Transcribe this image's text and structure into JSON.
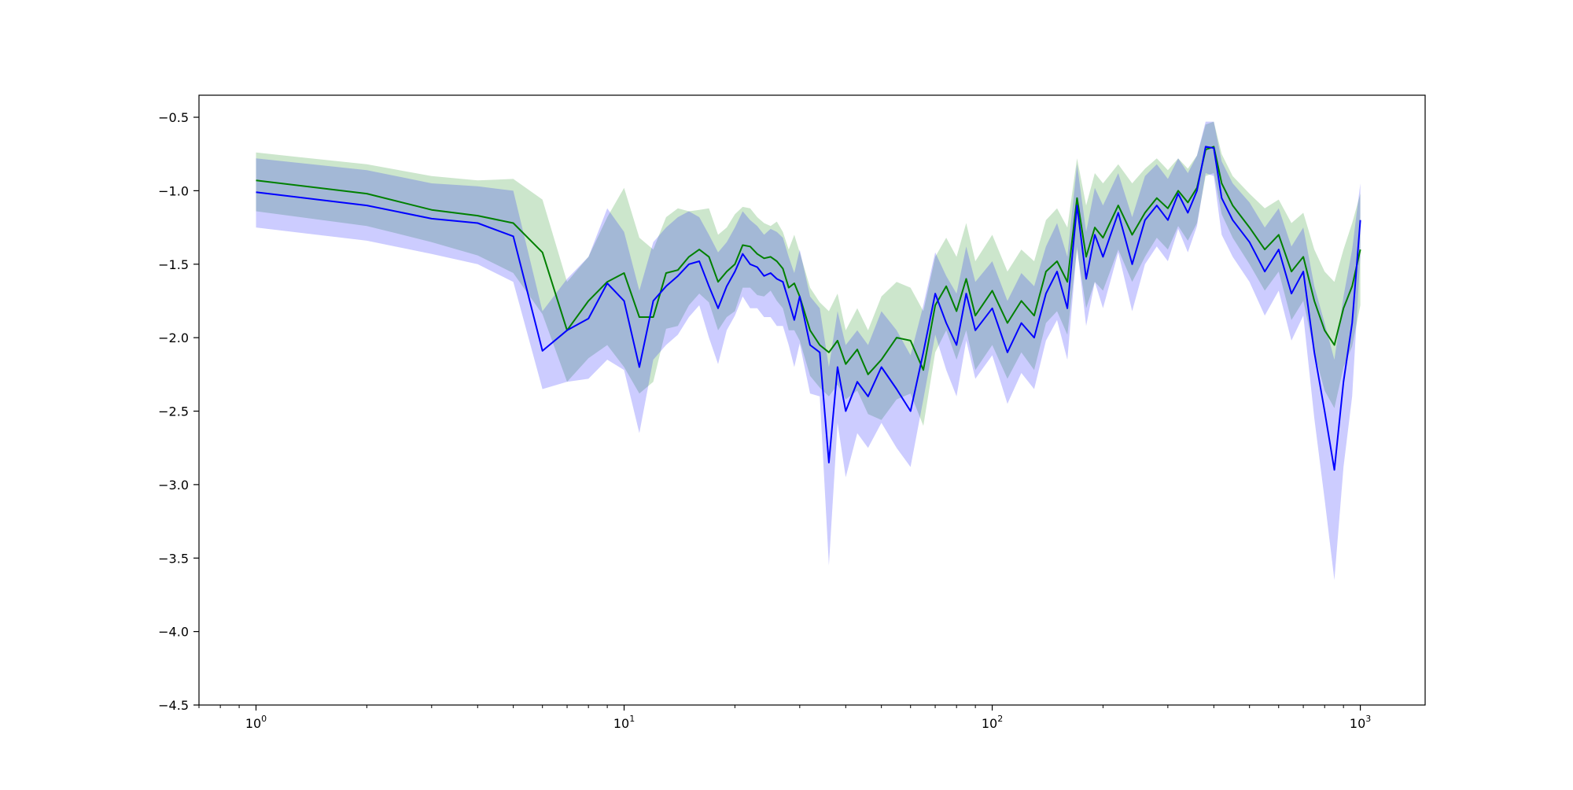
{
  "chart_data": {
    "type": "line",
    "title": "",
    "xlabel": "",
    "ylabel": "",
    "xscale": "log",
    "xlim": [
      0.7,
      1500
    ],
    "ylim": [
      -4.5,
      -0.35
    ],
    "grid": false,
    "legend": "none",
    "x_ticks": [
      {
        "base": "10",
        "exp": "0",
        "value": 1
      },
      {
        "base": "10",
        "exp": "1",
        "value": 10
      },
      {
        "base": "10",
        "exp": "2",
        "value": 100
      },
      {
        "base": "10",
        "exp": "3",
        "value": 1000
      }
    ],
    "y_ticks": [
      {
        "label": "−0.5",
        "value": -0.5
      },
      {
        "label": "−1.0",
        "value": -1.0
      },
      {
        "label": "−1.5",
        "value": -1.5
      },
      {
        "label": "−2.0",
        "value": -2.0
      },
      {
        "label": "−2.5",
        "value": -2.5
      },
      {
        "label": "−3.0",
        "value": -3.0
      },
      {
        "label": "−3.5",
        "value": -3.5
      },
      {
        "label": "−4.0",
        "value": -4.0
      },
      {
        "label": "−4.5",
        "value": -4.5
      }
    ],
    "series": [
      {
        "color": "#008000",
        "band_color": "#008000",
        "band_opacity": 0.2,
        "x": [
          1,
          2,
          3,
          4,
          5,
          6,
          7,
          8,
          9,
          10,
          11,
          12,
          13,
          14,
          15,
          16,
          17,
          18,
          19,
          20,
          21,
          22,
          23,
          24,
          25,
          26,
          27,
          28,
          29,
          30,
          32,
          34,
          36,
          38,
          40,
          43,
          46,
          50,
          55,
          60,
          65,
          70,
          75,
          80,
          85,
          90,
          100,
          110,
          120,
          130,
          140,
          150,
          160,
          170,
          180,
          190,
          200,
          220,
          240,
          260,
          280,
          300,
          320,
          340,
          360,
          380,
          400,
          420,
          450,
          500,
          550,
          600,
          650,
          700,
          750,
          800,
          850,
          900,
          950,
          1000
        ],
        "y": [
          -0.93,
          -1.02,
          -1.13,
          -1.17,
          -1.22,
          -1.42,
          -1.95,
          -1.75,
          -1.62,
          -1.56,
          -1.86,
          -1.86,
          -1.56,
          -1.54,
          -1.45,
          -1.4,
          -1.45,
          -1.62,
          -1.55,
          -1.5,
          -1.37,
          -1.38,
          -1.43,
          -1.46,
          -1.45,
          -1.48,
          -1.53,
          -1.66,
          -1.63,
          -1.72,
          -1.95,
          -2.05,
          -2.1,
          -2.02,
          -2.18,
          -2.08,
          -2.25,
          -2.15,
          -2.0,
          -2.02,
          -2.22,
          -1.78,
          -1.65,
          -1.82,
          -1.6,
          -1.85,
          -1.68,
          -1.9,
          -1.75,
          -1.85,
          -1.55,
          -1.48,
          -1.62,
          -1.05,
          -1.45,
          -1.25,
          -1.32,
          -1.1,
          -1.3,
          -1.15,
          -1.05,
          -1.12,
          -1.0,
          -1.08,
          -0.98,
          -0.72,
          -0.7,
          -0.95,
          -1.1,
          -1.25,
          -1.4,
          -1.3,
          -1.55,
          -1.45,
          -1.75,
          -1.95,
          -2.05,
          -1.8,
          -1.65,
          -1.4
        ],
        "upper": [
          -0.74,
          -0.82,
          -0.9,
          -0.93,
          -0.92,
          -1.06,
          -1.62,
          -1.45,
          -1.18,
          -0.98,
          -1.32,
          -1.4,
          -1.18,
          -1.12,
          -1.14,
          -1.13,
          -1.12,
          -1.3,
          -1.25,
          -1.16,
          -1.11,
          -1.12,
          -1.18,
          -1.22,
          -1.24,
          -1.21,
          -1.28,
          -1.4,
          -1.3,
          -1.42,
          -1.66,
          -1.76,
          -1.82,
          -1.7,
          -1.95,
          -1.8,
          -1.95,
          -1.72,
          -1.62,
          -1.66,
          -1.82,
          -1.45,
          -1.32,
          -1.45,
          -1.22,
          -1.48,
          -1.3,
          -1.55,
          -1.4,
          -1.48,
          -1.2,
          -1.12,
          -1.25,
          -0.78,
          -1.1,
          -0.88,
          -0.95,
          -0.82,
          -0.95,
          -0.85,
          -0.78,
          -0.86,
          -0.78,
          -0.85,
          -0.76,
          -0.55,
          -0.53,
          -0.75,
          -0.9,
          -1.02,
          -1.12,
          -1.06,
          -1.22,
          -1.15,
          -1.4,
          -1.55,
          -1.62,
          -1.4,
          -1.22,
          -1.02
        ],
        "lower": [
          -1.14,
          -1.24,
          -1.35,
          -1.44,
          -1.56,
          -1.84,
          -2.3,
          -2.14,
          -2.05,
          -2.2,
          -2.38,
          -2.3,
          -1.94,
          -1.92,
          -1.78,
          -1.7,
          -1.76,
          -1.95,
          -1.86,
          -1.82,
          -1.66,
          -1.66,
          -1.71,
          -1.72,
          -1.68,
          -1.75,
          -1.8,
          -1.95,
          -1.95,
          -2.02,
          -2.26,
          -2.34,
          -2.4,
          -2.32,
          -2.42,
          -2.36,
          -2.52,
          -2.56,
          -2.42,
          -2.38,
          -2.6,
          -2.1,
          -1.95,
          -2.15,
          -1.95,
          -2.22,
          -2.05,
          -2.28,
          -2.1,
          -2.22,
          -1.9,
          -1.82,
          -1.98,
          -1.4,
          -1.8,
          -1.62,
          -1.68,
          -1.4,
          -1.62,
          -1.45,
          -1.32,
          -1.4,
          -1.24,
          -1.34,
          -1.22,
          -0.9,
          -0.88,
          -1.16,
          -1.32,
          -1.5,
          -1.68,
          -1.55,
          -1.88,
          -1.75,
          -2.1,
          -2.36,
          -2.48,
          -2.2,
          -2.06,
          -1.78
        ]
      },
      {
        "color": "#0000ff",
        "band_color": "#0000ff",
        "band_opacity": 0.2,
        "x": [
          1,
          2,
          3,
          4,
          5,
          6,
          7,
          8,
          9,
          10,
          11,
          12,
          13,
          14,
          15,
          16,
          17,
          18,
          19,
          20,
          21,
          22,
          23,
          24,
          25,
          26,
          27,
          28,
          29,
          30,
          32,
          34,
          36,
          38,
          40,
          43,
          46,
          50,
          55,
          60,
          65,
          70,
          75,
          80,
          85,
          90,
          100,
          110,
          120,
          130,
          140,
          150,
          160,
          170,
          180,
          190,
          200,
          220,
          240,
          260,
          280,
          300,
          320,
          340,
          360,
          380,
          400,
          420,
          450,
          500,
          550,
          600,
          650,
          700,
          750,
          800,
          850,
          900,
          950,
          1000
        ],
        "y": [
          -1.01,
          -1.1,
          -1.19,
          -1.22,
          -1.31,
          -2.09,
          -1.95,
          -1.87,
          -1.63,
          -1.75,
          -2.2,
          -1.75,
          -1.65,
          -1.58,
          -1.5,
          -1.48,
          -1.65,
          -1.8,
          -1.65,
          -1.55,
          -1.43,
          -1.5,
          -1.52,
          -1.58,
          -1.56,
          -1.6,
          -1.62,
          -1.75,
          -1.88,
          -1.72,
          -2.05,
          -2.1,
          -2.85,
          -2.2,
          -2.5,
          -2.3,
          -2.4,
          -2.2,
          -2.35,
          -2.5,
          -2.1,
          -1.7,
          -1.9,
          -2.05,
          -1.7,
          -1.95,
          -1.8,
          -2.1,
          -1.9,
          -2.0,
          -1.7,
          -1.55,
          -1.8,
          -1.1,
          -1.6,
          -1.3,
          -1.45,
          -1.15,
          -1.5,
          -1.2,
          -1.1,
          -1.2,
          -1.02,
          -1.15,
          -1.0,
          -0.7,
          -0.71,
          -1.05,
          -1.2,
          -1.35,
          -1.55,
          -1.4,
          -1.7,
          -1.55,
          -2.1,
          -2.5,
          -2.9,
          -2.3,
          -1.9,
          -1.2
        ],
        "upper": [
          -0.78,
          -0.86,
          -0.95,
          -0.97,
          -1.0,
          -1.82,
          -1.6,
          -1.45,
          -1.12,
          -1.28,
          -1.68,
          -1.35,
          -1.25,
          -1.18,
          -1.14,
          -1.18,
          -1.3,
          -1.42,
          -1.35,
          -1.25,
          -1.14,
          -1.2,
          -1.24,
          -1.3,
          -1.26,
          -1.28,
          -1.32,
          -1.45,
          -1.56,
          -1.4,
          -1.72,
          -1.8,
          -2.2,
          -1.82,
          -2.05,
          -1.95,
          -2.05,
          -1.82,
          -1.95,
          -2.12,
          -1.78,
          -1.42,
          -1.58,
          -1.7,
          -1.38,
          -1.62,
          -1.48,
          -1.75,
          -1.56,
          -1.65,
          -1.38,
          -1.22,
          -1.45,
          -0.82,
          -1.28,
          -0.98,
          -1.1,
          -0.88,
          -1.18,
          -0.9,
          -0.82,
          -0.92,
          -0.78,
          -0.88,
          -0.76,
          -0.53,
          -0.53,
          -0.8,
          -0.95,
          -1.08,
          -1.25,
          -1.12,
          -1.38,
          -1.25,
          -1.65,
          -1.9,
          -2.15,
          -1.72,
          -1.4,
          -0.95
        ],
        "lower": [
          -1.25,
          -1.34,
          -1.43,
          -1.5,
          -1.62,
          -2.35,
          -2.3,
          -2.28,
          -2.15,
          -2.22,
          -2.65,
          -2.15,
          -2.05,
          -1.98,
          -1.86,
          -1.78,
          -2.0,
          -2.18,
          -1.95,
          -1.85,
          -1.72,
          -1.8,
          -1.8,
          -1.86,
          -1.86,
          -1.92,
          -1.92,
          -2.05,
          -2.2,
          -2.04,
          -2.38,
          -2.4,
          -3.55,
          -2.58,
          -2.95,
          -2.65,
          -2.75,
          -2.58,
          -2.75,
          -2.88,
          -2.42,
          -1.98,
          -2.22,
          -2.4,
          -2.02,
          -2.28,
          -2.12,
          -2.45,
          -2.24,
          -2.35,
          -2.02,
          -1.88,
          -2.15,
          -1.38,
          -1.92,
          -1.62,
          -1.8,
          -1.42,
          -1.82,
          -1.5,
          -1.38,
          -1.48,
          -1.26,
          -1.42,
          -1.24,
          -0.88,
          -0.9,
          -1.3,
          -1.45,
          -1.62,
          -1.85,
          -1.68,
          -2.02,
          -1.85,
          -2.55,
          -3.1,
          -3.65,
          -2.88,
          -2.4,
          -1.45
        ]
      }
    ]
  }
}
